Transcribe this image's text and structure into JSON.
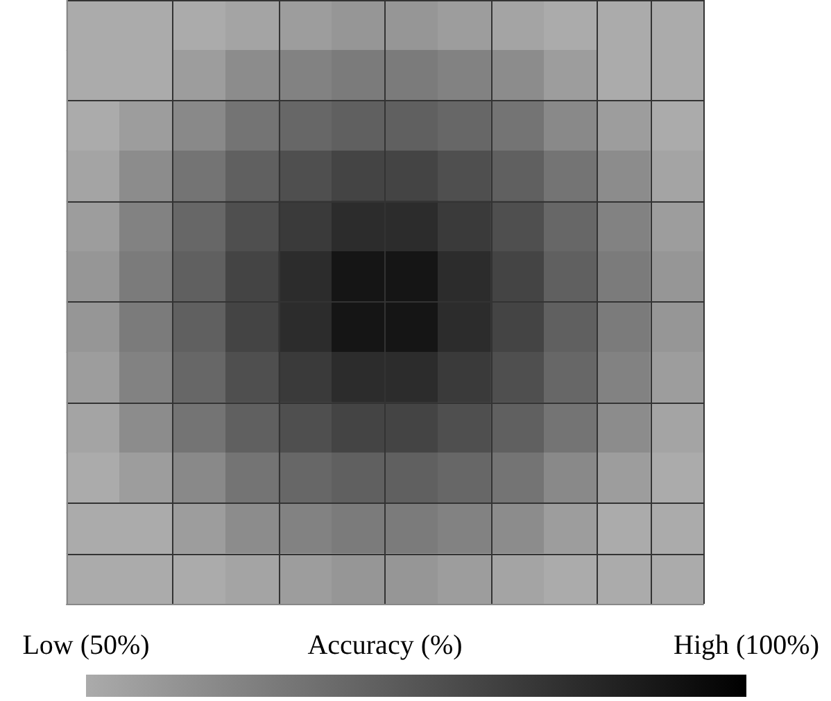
{
  "chart_data": {
    "type": "heatmap",
    "clabel": "Accuracy (%)",
    "categories": [
      null,
      null,
      null,
      null,
      null,
      null,
      null,
      null,
      null,
      null,
      null,
      null
    ],
    "y_categories": [
      null,
      null,
      null,
      null,
      null,
      null,
      null,
      null,
      null,
      null,
      null,
      null
    ],
    "cells": [
      [
        50,
        50,
        50,
        52,
        54,
        56,
        56,
        54,
        52,
        50,
        50,
        50
      ],
      [
        50,
        50,
        54,
        59,
        62,
        64,
        64,
        62,
        59,
        54,
        50,
        50
      ],
      [
        50,
        54,
        60,
        66,
        70,
        72,
        72,
        70,
        66,
        60,
        54,
        50
      ],
      [
        52,
        59,
        66,
        72,
        77,
        80,
        80,
        77,
        72,
        66,
        59,
        52
      ],
      [
        54,
        62,
        70,
        77,
        83,
        87,
        87,
        83,
        77,
        70,
        62,
        54
      ],
      [
        56,
        64,
        72,
        80,
        87,
        94,
        94,
        87,
        80,
        72,
        64,
        56
      ],
      [
        56,
        64,
        72,
        80,
        87,
        94,
        94,
        87,
        80,
        72,
        64,
        56
      ],
      [
        54,
        62,
        70,
        77,
        83,
        87,
        87,
        83,
        77,
        70,
        62,
        54
      ],
      [
        52,
        59,
        66,
        72,
        77,
        80,
        80,
        77,
        72,
        66,
        59,
        52
      ],
      [
        50,
        54,
        60,
        66,
        70,
        72,
        72,
        70,
        66,
        60,
        54,
        50
      ],
      [
        50,
        50,
        54,
        59,
        62,
        64,
        64,
        62,
        59,
        54,
        50,
        50
      ],
      [
        50,
        50,
        50,
        52,
        54,
        56,
        56,
        54,
        52,
        50,
        50,
        50
      ]
    ],
    "clim": [
      50,
      100
    ],
    "cticks": [
      {
        "value": 50,
        "label": "Low (50%)"
      },
      {
        "value": 100,
        "label": "High (100%)"
      }
    ],
    "grid": true
  }
}
